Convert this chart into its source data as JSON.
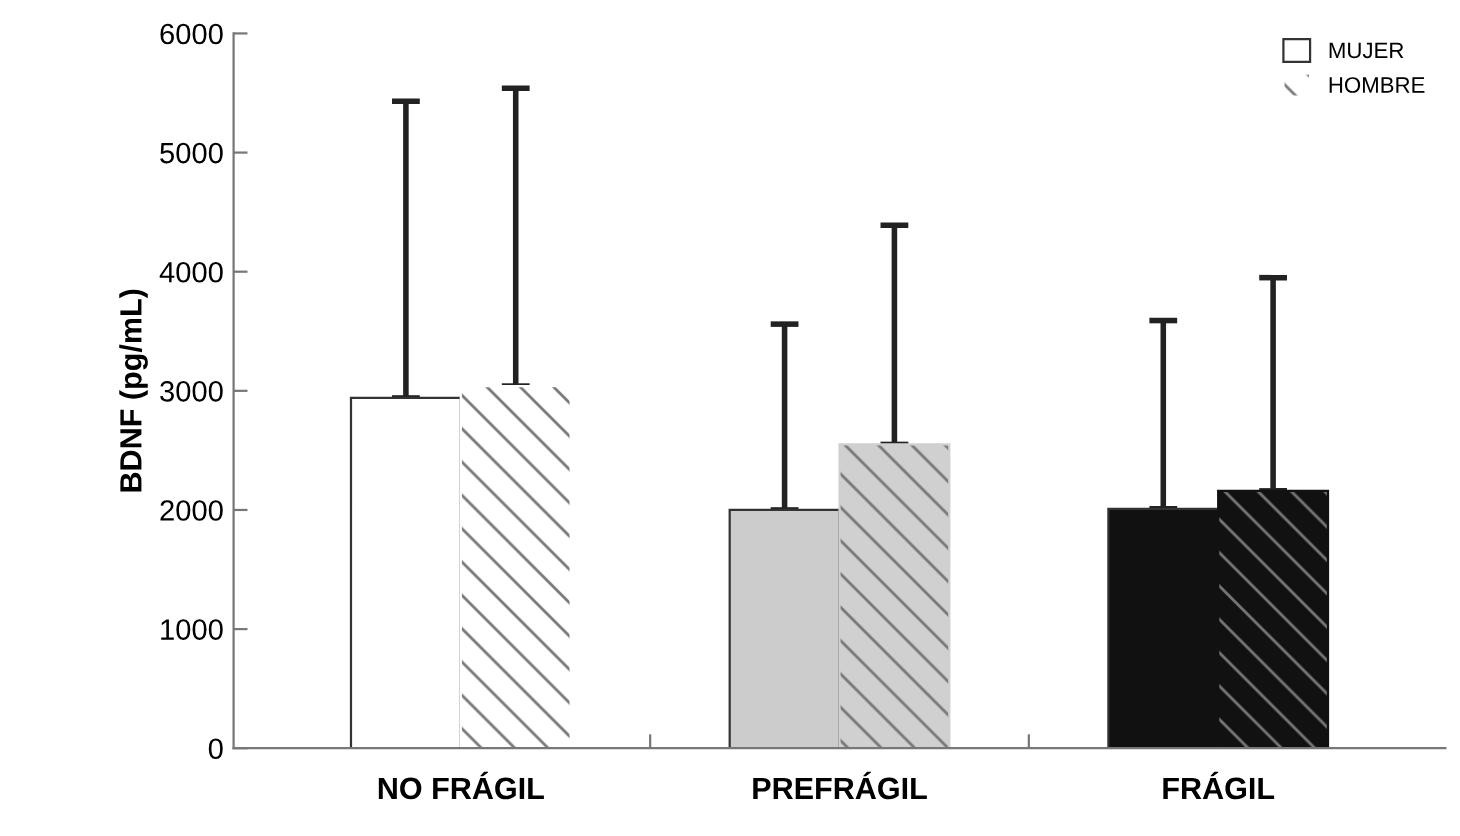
{
  "chart_data": {
    "type": "bar",
    "ylabel": "BDNF (pg/mL)",
    "categories": [
      "NO FRÁGIL",
      "PREFRÁGIL",
      "FRÁGIL"
    ],
    "series": [
      {
        "name": "MUJER",
        "colors": [
          "#ffffff",
          "#cccccc",
          "#111111"
        ],
        "values": [
          2940,
          2000,
          2010
        ],
        "errors": [
          [
            2940,
            5430
          ],
          [
            2000,
            3560
          ],
          [
            2010,
            3590
          ]
        ]
      },
      {
        "name": "HOMBRE",
        "colors": [
          "#ffffff",
          "#d0d0d0",
          "#111111"
        ],
        "values": [
          3040,
          2550,
          2160
        ],
        "errors": [
          [
            3040,
            5540
          ],
          [
            2550,
            4390
          ],
          [
            2160,
            3950
          ]
        ]
      }
    ],
    "ylim": [
      0,
      6000
    ],
    "yticks": [
      0,
      1000,
      2000,
      3000,
      4000,
      5000,
      6000
    ],
    "grid": false,
    "legend": "top right"
  }
}
